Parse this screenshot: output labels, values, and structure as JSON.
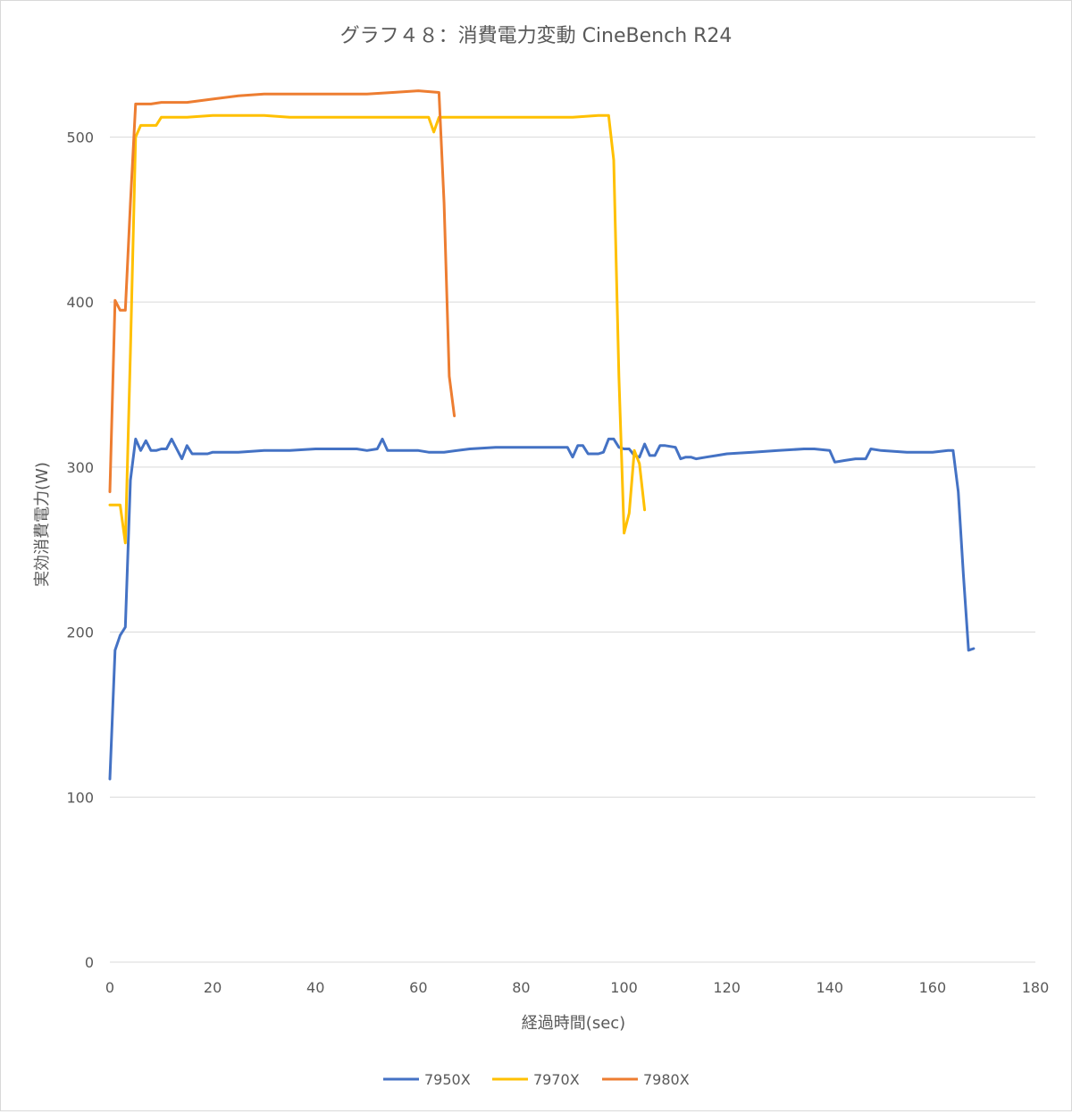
{
  "chart_data": {
    "type": "line",
    "title": "グラフ４８：消費電力変動 CineBench R24",
    "xlabel": "経過時間(sec)",
    "ylabel": "実効消費電力(W)",
    "xlim": [
      0,
      180
    ],
    "ylim": [
      0,
      550
    ],
    "x_ticks": [
      0,
      20,
      40,
      60,
      80,
      100,
      120,
      140,
      160,
      180
    ],
    "y_ticks": [
      0,
      100,
      200,
      300,
      400,
      500
    ],
    "grid": "horizontal",
    "legend_position": "bottom",
    "series": [
      {
        "name": "7950X",
        "color": "#4472c4",
        "points": [
          [
            0,
            111
          ],
          [
            1,
            189
          ],
          [
            2,
            198
          ],
          [
            3,
            203
          ],
          [
            4,
            292
          ],
          [
            5,
            317
          ],
          [
            6,
            310
          ],
          [
            7,
            316
          ],
          [
            8,
            310
          ],
          [
            9,
            310
          ],
          [
            10,
            311
          ],
          [
            11,
            311
          ],
          [
            12,
            317
          ],
          [
            13,
            311
          ],
          [
            14,
            305
          ],
          [
            15,
            313
          ],
          [
            16,
            308
          ],
          [
            17,
            308
          ],
          [
            18,
            308
          ],
          [
            19,
            308
          ],
          [
            20,
            309
          ],
          [
            25,
            309
          ],
          [
            30,
            310
          ],
          [
            35,
            310
          ],
          [
            40,
            311
          ],
          [
            45,
            311
          ],
          [
            48,
            311
          ],
          [
            50,
            310
          ],
          [
            52,
            311
          ],
          [
            53,
            317
          ],
          [
            54,
            310
          ],
          [
            56,
            310
          ],
          [
            58,
            310
          ],
          [
            60,
            310
          ],
          [
            62,
            309
          ],
          [
            65,
            309
          ],
          [
            70,
            311
          ],
          [
            75,
            312
          ],
          [
            80,
            312
          ],
          [
            85,
            312
          ],
          [
            89,
            312
          ],
          [
            90,
            306
          ],
          [
            91,
            313
          ],
          [
            92,
            313
          ],
          [
            93,
            308
          ],
          [
            95,
            308
          ],
          [
            96,
            309
          ],
          [
            97,
            317
          ],
          [
            98,
            317
          ],
          [
            99,
            312
          ],
          [
            100,
            311
          ],
          [
            101,
            311
          ],
          [
            102,
            307
          ],
          [
            103,
            306
          ],
          [
            104,
            314
          ],
          [
            105,
            307
          ],
          [
            106,
            307
          ],
          [
            107,
            313
          ],
          [
            108,
            313
          ],
          [
            110,
            312
          ],
          [
            111,
            305
          ],
          [
            112,
            306
          ],
          [
            113,
            306
          ],
          [
            114,
            305
          ],
          [
            116,
            306
          ],
          [
            118,
            307
          ],
          [
            120,
            308
          ],
          [
            125,
            309
          ],
          [
            130,
            310
          ],
          [
            135,
            311
          ],
          [
            137,
            311
          ],
          [
            140,
            310
          ],
          [
            141,
            303
          ],
          [
            143,
            304
          ],
          [
            145,
            305
          ],
          [
            147,
            305
          ],
          [
            148,
            311
          ],
          [
            150,
            310
          ],
          [
            155,
            309
          ],
          [
            160,
            309
          ],
          [
            163,
            310
          ],
          [
            164,
            310
          ],
          [
            165,
            285
          ],
          [
            166,
            235
          ],
          [
            167,
            189
          ],
          [
            168,
            190
          ]
        ]
      },
      {
        "name": "7970X",
        "color": "#ffc000",
        "points": [
          [
            0,
            277
          ],
          [
            1,
            277
          ],
          [
            2,
            277
          ],
          [
            3,
            254
          ],
          [
            4,
            370
          ],
          [
            5,
            500
          ],
          [
            6,
            507
          ],
          [
            7,
            507
          ],
          [
            8,
            507
          ],
          [
            9,
            507
          ],
          [
            10,
            512
          ],
          [
            11,
            512
          ],
          [
            12,
            512
          ],
          [
            15,
            512
          ],
          [
            20,
            513
          ],
          [
            25,
            513
          ],
          [
            30,
            513
          ],
          [
            35,
            512
          ],
          [
            40,
            512
          ],
          [
            45,
            512
          ],
          [
            50,
            512
          ],
          [
            55,
            512
          ],
          [
            60,
            512
          ],
          [
            62,
            512
          ],
          [
            63,
            503
          ],
          [
            64,
            512
          ],
          [
            70,
            512
          ],
          [
            75,
            512
          ],
          [
            80,
            512
          ],
          [
            85,
            512
          ],
          [
            90,
            512
          ],
          [
            95,
            513
          ],
          [
            97,
            513
          ],
          [
            98,
            486
          ],
          [
            99,
            355
          ],
          [
            100,
            260
          ],
          [
            101,
            272
          ],
          [
            102,
            310
          ],
          [
            103,
            302
          ],
          [
            104,
            274
          ]
        ]
      },
      {
        "name": "7980X",
        "color": "#ed7d31",
        "points": [
          [
            0,
            285
          ],
          [
            1,
            401
          ],
          [
            2,
            395
          ],
          [
            3,
            395
          ],
          [
            4,
            460
          ],
          [
            5,
            520
          ],
          [
            6,
            520
          ],
          [
            8,
            520
          ],
          [
            10,
            521
          ],
          [
            15,
            521
          ],
          [
            20,
            523
          ],
          [
            25,
            525
          ],
          [
            30,
            526
          ],
          [
            35,
            526
          ],
          [
            40,
            526
          ],
          [
            45,
            526
          ],
          [
            50,
            526
          ],
          [
            55,
            527
          ],
          [
            60,
            528
          ],
          [
            64,
            527
          ],
          [
            65,
            460
          ],
          [
            66,
            355
          ],
          [
            67,
            331
          ]
        ]
      }
    ]
  }
}
